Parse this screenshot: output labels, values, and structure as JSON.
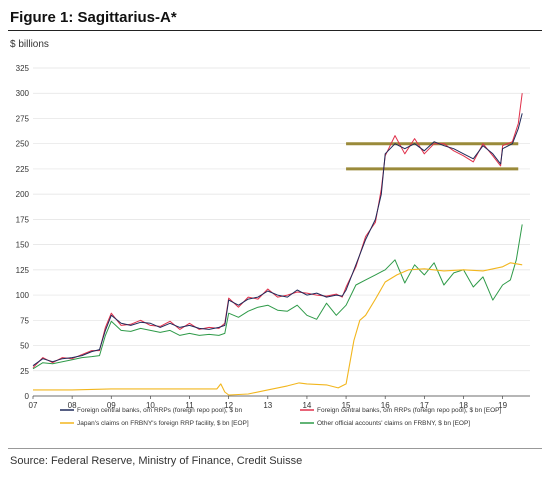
{
  "figure": {
    "title": "Figure 1: Sagittarius-A*",
    "source": "Source: Federal Reserve, Ministry of Finance, Credit Suisse"
  },
  "chart_data": {
    "type": "line",
    "ylabel": "$ billions",
    "xlabel": "",
    "ylim": [
      0,
      325
    ],
    "yticks": [
      0,
      25,
      50,
      75,
      100,
      125,
      150,
      175,
      200,
      225,
      250,
      275,
      300,
      325
    ],
    "xlim": [
      2007.0,
      2019.7
    ],
    "xticks": [
      {
        "x": 2007,
        "label": "07"
      },
      {
        "x": 2008,
        "label": "08"
      },
      {
        "x": 2009,
        "label": "09"
      },
      {
        "x": 2010,
        "label": "10"
      },
      {
        "x": 2011,
        "label": "11"
      },
      {
        "x": 2012,
        "label": "12"
      },
      {
        "x": 2013,
        "label": "13"
      },
      {
        "x": 2014,
        "label": "14"
      },
      {
        "x": 2015,
        "label": "15"
      },
      {
        "x": 2016,
        "label": "16"
      },
      {
        "x": 2017,
        "label": "17"
      },
      {
        "x": 2018,
        "label": "18"
      },
      {
        "x": 2019,
        "label": "19"
      }
    ],
    "grid": "horizontal",
    "legend_position": "bottom",
    "annotations": {
      "horizontal_bands": [
        {
          "y": 250,
          "x_from": 2015.0,
          "x_to": 2019.4,
          "color": "#9a8a3a"
        },
        {
          "y": 225,
          "x_from": 2015.0,
          "x_to": 2019.4,
          "color": "#9a8a3a"
        }
      ]
    },
    "series": [
      {
        "name": "Foreign central banks, o/n RRPs (foreign repo pool), $ bn",
        "color": "#1f2a5a",
        "x": [
          2007.0,
          2007.25,
          2007.5,
          2007.75,
          2008.0,
          2008.25,
          2008.5,
          2008.7,
          2008.85,
          2009.0,
          2009.25,
          2009.5,
          2009.75,
          2010.0,
          2010.25,
          2010.5,
          2010.75,
          2011.0,
          2011.25,
          2011.5,
          2011.75,
          2011.9,
          2012.0,
          2012.25,
          2012.5,
          2012.75,
          2013.0,
          2013.25,
          2013.5,
          2013.75,
          2014.0,
          2014.25,
          2014.5,
          2014.75,
          2014.9,
          2015.0,
          2015.25,
          2015.5,
          2015.75,
          2015.9,
          2016.0,
          2016.25,
          2016.5,
          2016.75,
          2017.0,
          2017.25,
          2017.5,
          2017.75,
          2018.0,
          2018.25,
          2018.5,
          2018.75,
          2018.95,
          2019.0,
          2019.25,
          2019.4,
          2019.5
        ],
        "values": [
          30,
          37,
          34,
          37,
          38,
          40,
          44,
          46,
          65,
          80,
          72,
          70,
          73,
          72,
          68,
          72,
          68,
          70,
          67,
          66,
          68,
          70,
          95,
          90,
          96,
          98,
          104,
          100,
          98,
          105,
          100,
          102,
          98,
          100,
          99,
          105,
          130,
          155,
          175,
          200,
          240,
          250,
          245,
          250,
          243,
          252,
          248,
          245,
          240,
          235,
          248,
          240,
          230,
          245,
          250,
          265,
          280
        ]
      },
      {
        "name": "Foreign central banks, o/n RRPs (foreign repo pool), $ bn [EOP]",
        "color": "#e0304a",
        "x": [
          2007.0,
          2007.25,
          2007.5,
          2007.75,
          2008.0,
          2008.25,
          2008.5,
          2008.7,
          2008.85,
          2009.0,
          2009.25,
          2009.5,
          2009.75,
          2010.0,
          2010.25,
          2010.5,
          2010.75,
          2011.0,
          2011.25,
          2011.5,
          2011.75,
          2011.9,
          2012.0,
          2012.25,
          2012.5,
          2012.75,
          2013.0,
          2013.25,
          2013.5,
          2013.75,
          2014.0,
          2014.25,
          2014.5,
          2014.75,
          2014.9,
          2015.0,
          2015.25,
          2015.5,
          2015.75,
          2015.9,
          2016.0,
          2016.25,
          2016.5,
          2016.75,
          2017.0,
          2017.25,
          2017.5,
          2017.75,
          2018.0,
          2018.25,
          2018.5,
          2018.75,
          2018.95,
          2019.0,
          2019.25,
          2019.4,
          2019.5
        ],
        "values": [
          28,
          38,
          33,
          38,
          37,
          41,
          45,
          45,
          68,
          82,
          70,
          71,
          75,
          70,
          69,
          74,
          66,
          72,
          66,
          68,
          67,
          72,
          97,
          88,
          98,
          96,
          106,
          98,
          100,
          103,
          102,
          100,
          99,
          101,
          98,
          108,
          128,
          158,
          172,
          205,
          238,
          258,
          240,
          255,
          240,
          250,
          250,
          243,
          238,
          232,
          250,
          238,
          228,
          248,
          252,
          270,
          300
        ]
      },
      {
        "name": "Japan's claims on FRBNY's foreign RRP facility, $ bn [EOP]",
        "color": "#f2b61e",
        "x": [
          2007.0,
          2008.0,
          2009.0,
          2010.0,
          2011.0,
          2011.7,
          2011.8,
          2011.9,
          2012.0,
          2012.5,
          2013.0,
          2013.5,
          2013.8,
          2014.0,
          2014.5,
          2014.8,
          2015.0,
          2015.2,
          2015.35,
          2015.5,
          2015.75,
          2016.0,
          2016.3,
          2016.6,
          2017.0,
          2017.5,
          2018.0,
          2018.5,
          2019.0,
          2019.2,
          2019.5
        ],
        "values": [
          6,
          6,
          7,
          7,
          7,
          7,
          12,
          4,
          1,
          2,
          6,
          10,
          13,
          12,
          11,
          8,
          12,
          55,
          75,
          80,
          96,
          113,
          120,
          125,
          126,
          124,
          125,
          124,
          128,
          132,
          130
        ]
      },
      {
        "name": "Other official accounts' claims on FRBNY, $ bn [EOP]",
        "color": "#2e9a48",
        "x": [
          2007.0,
          2007.25,
          2007.5,
          2007.75,
          2008.0,
          2008.25,
          2008.5,
          2008.7,
          2008.85,
          2009.0,
          2009.25,
          2009.5,
          2009.75,
          2010.0,
          2010.25,
          2010.5,
          2010.75,
          2011.0,
          2011.25,
          2011.5,
          2011.75,
          2011.9,
          2012.0,
          2012.25,
          2012.5,
          2012.75,
          2013.0,
          2013.25,
          2013.5,
          2013.75,
          2014.0,
          2014.25,
          2014.5,
          2014.75,
          2015.0,
          2015.25,
          2015.5,
          2015.75,
          2016.0,
          2016.25,
          2016.5,
          2016.75,
          2017.0,
          2017.25,
          2017.5,
          2017.75,
          2018.0,
          2018.25,
          2018.5,
          2018.75,
          2019.0,
          2019.2,
          2019.35,
          2019.5
        ],
        "values": [
          27,
          33,
          32,
          34,
          36,
          38,
          39,
          40,
          60,
          74,
          65,
          64,
          67,
          65,
          63,
          65,
          60,
          62,
          60,
          61,
          60,
          62,
          82,
          78,
          84,
          88,
          90,
          85,
          84,
          90,
          80,
          76,
          92,
          80,
          90,
          110,
          115,
          120,
          125,
          135,
          112,
          130,
          120,
          132,
          110,
          122,
          125,
          108,
          118,
          95,
          110,
          115,
          135,
          170
        ]
      }
    ]
  }
}
